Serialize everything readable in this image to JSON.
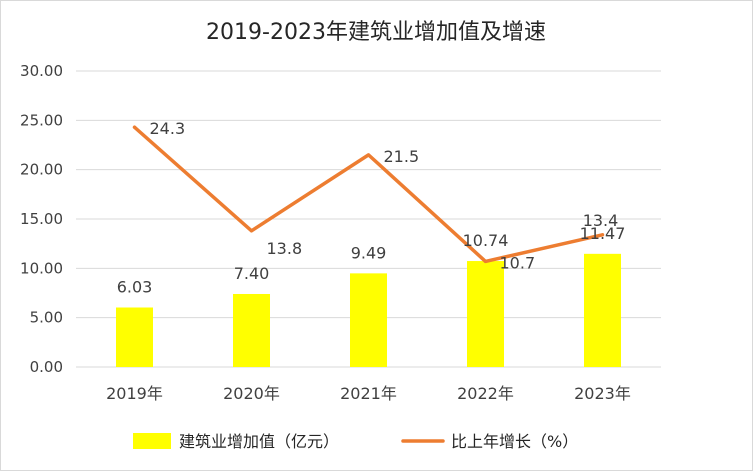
{
  "chart_data": {
    "type": "bar",
    "title": "2019-2023年建筑业增加值及增速",
    "categories": [
      "2019年",
      "2020年",
      "2021年",
      "2022年",
      "2023年"
    ],
    "series": [
      {
        "name": "建筑业增加值（亿元）",
        "type": "bar",
        "values": [
          6.03,
          7.4,
          9.49,
          10.74,
          11.47
        ],
        "labels": [
          "6.03",
          "7.40",
          "9.49",
          "10.74",
          "11.47"
        ],
        "color": "#ffff00"
      },
      {
        "name": "比上年增长（%）",
        "type": "line",
        "values": [
          24.3,
          13.8,
          21.5,
          10.7,
          13.4
        ],
        "labels": [
          "24.3",
          "13.8",
          "21.5",
          "10.7",
          "13.4"
        ],
        "color": "#ed7d31"
      }
    ],
    "ylim": [
      0,
      30
    ],
    "yticks": [
      "0.00",
      "5.00",
      "10.00",
      "15.00",
      "20.00",
      "25.00",
      "30.00"
    ],
    "grid": true,
    "legend": "bottom",
    "xlabel": "",
    "ylabel": ""
  }
}
